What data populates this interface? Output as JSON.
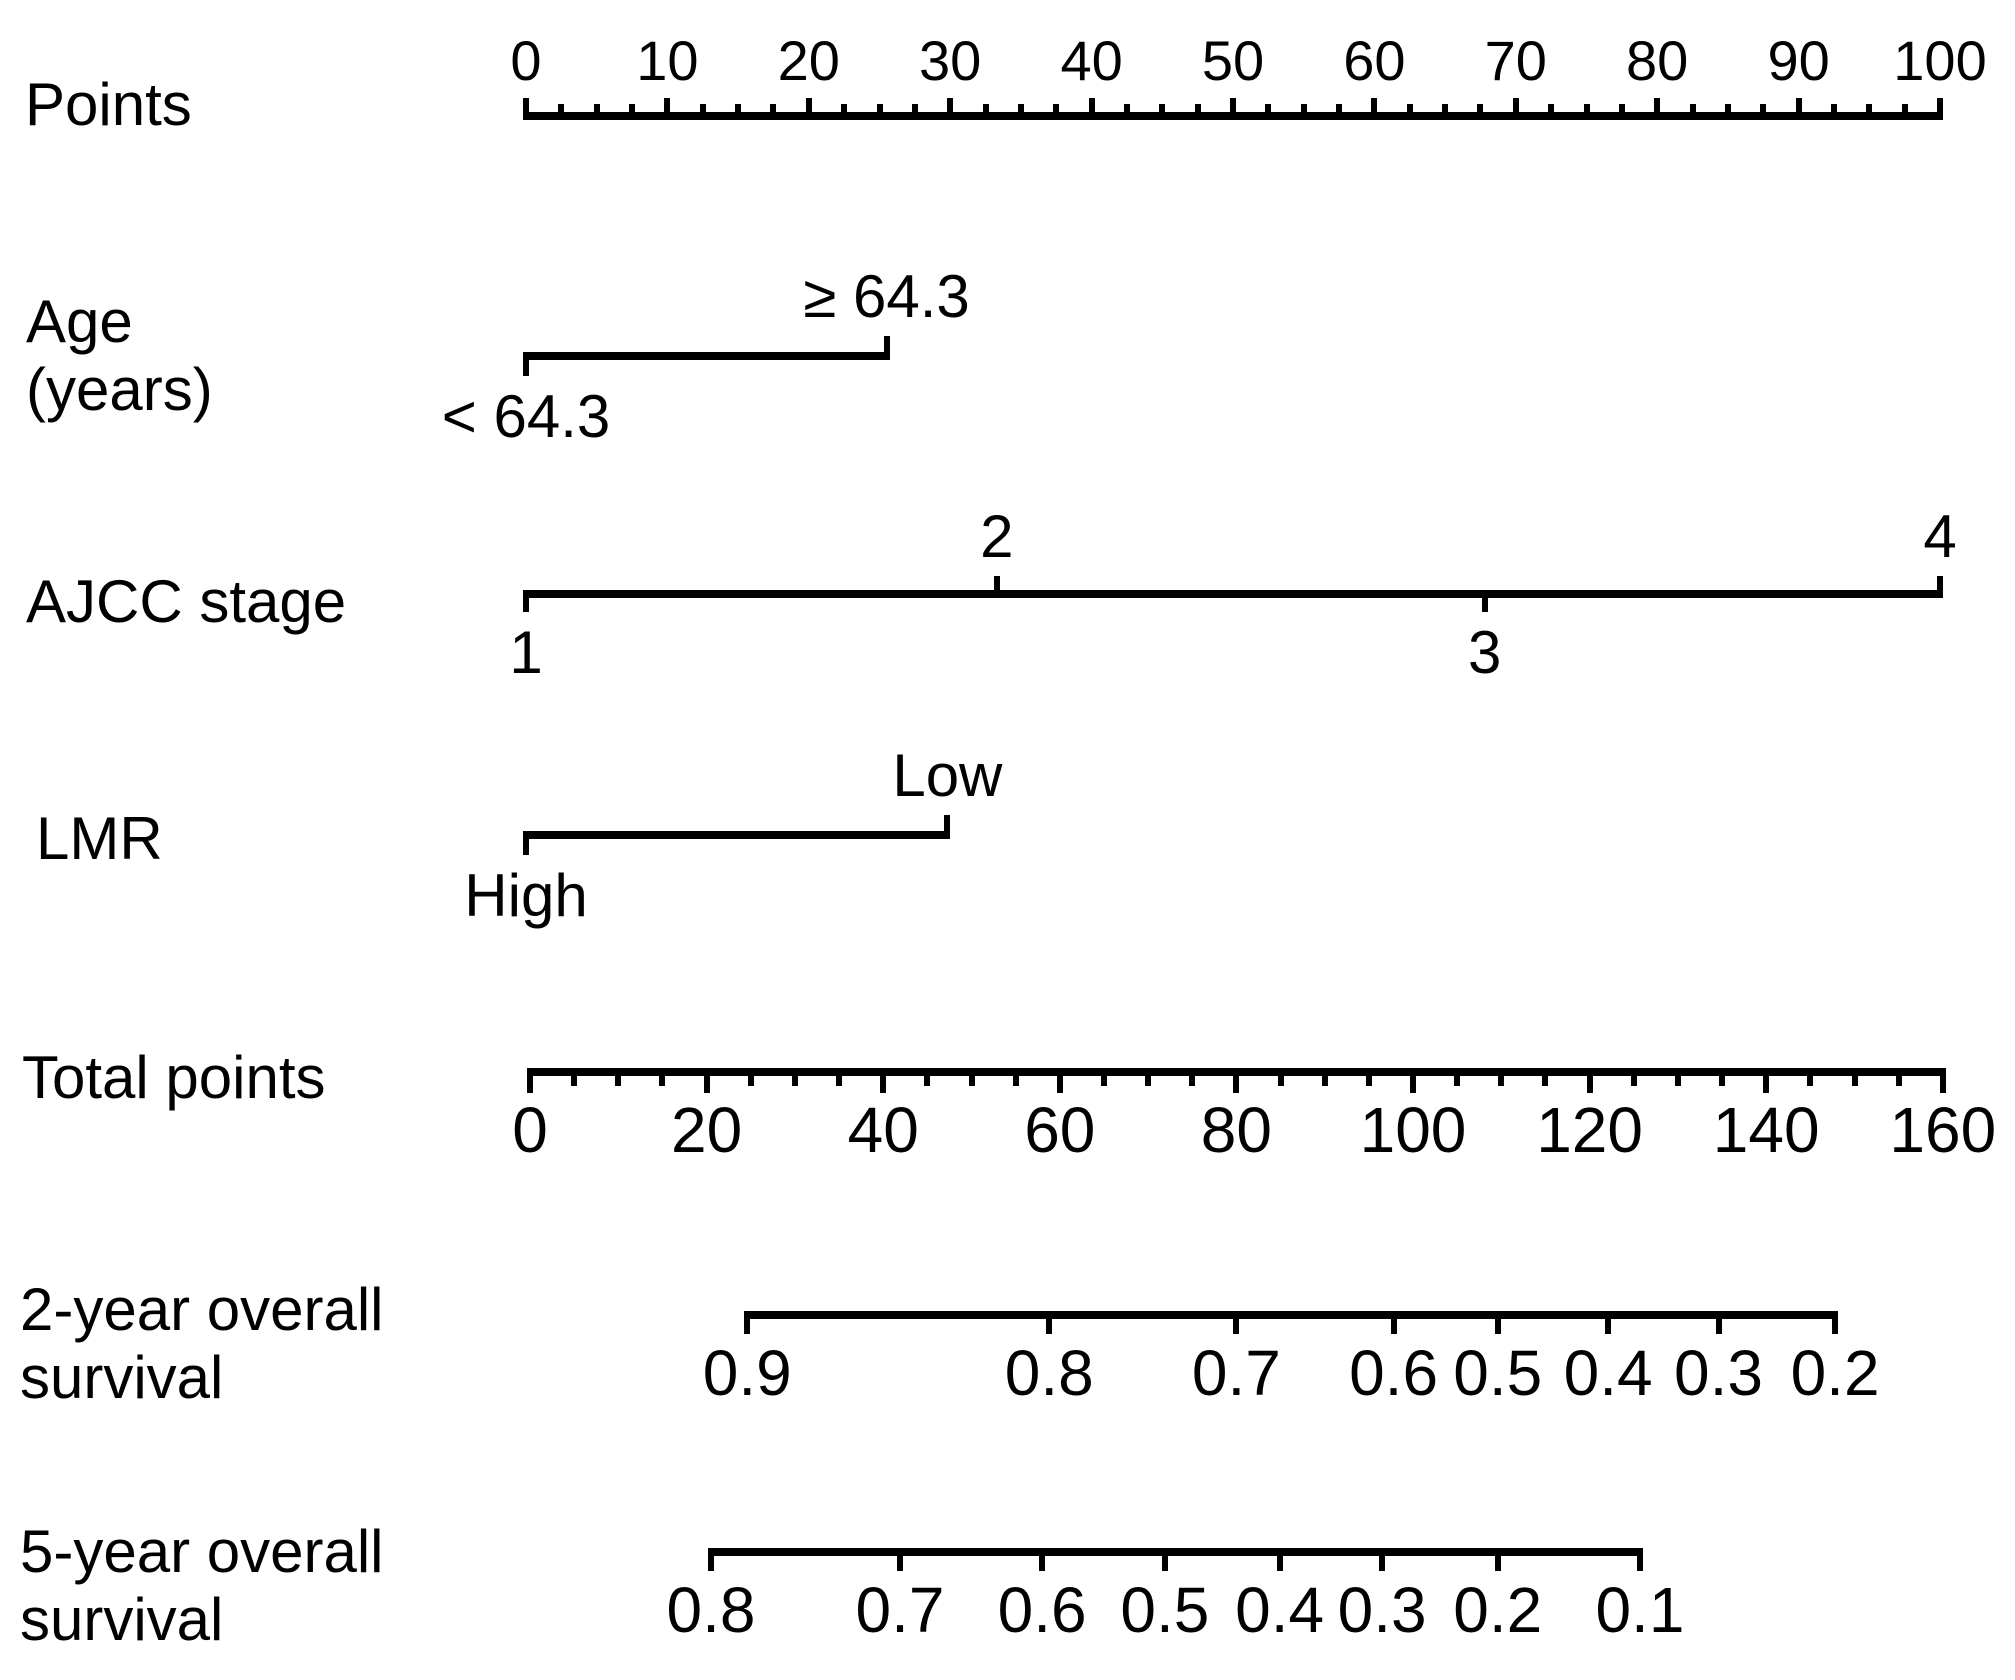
{
  "figure": {
    "background": "#ffffff",
    "ink_color": "#000000"
  },
  "chart_data": {
    "type": "nomogram",
    "description": "Nomogram predicting 2-year and 5-year overall survival from Age, AJCC stage and LMR",
    "rows": [
      {
        "id": "points",
        "kind": "ruler",
        "scale": "points",
        "label_lines": [
          "Points"
        ],
        "range": [
          0,
          100
        ],
        "tick_side": "above",
        "minor_step": 2.5,
        "major_ticks": [
          {
            "text": "0",
            "value": 0
          },
          {
            "text": "10",
            "value": 10
          },
          {
            "text": "20",
            "value": 20
          },
          {
            "text": "30",
            "value": 30
          },
          {
            "text": "40",
            "value": 40
          },
          {
            "text": "50",
            "value": 50
          },
          {
            "text": "60",
            "value": 60
          },
          {
            "text": "70",
            "value": 70
          },
          {
            "text": "80",
            "value": 80
          },
          {
            "text": "90",
            "value": 90
          },
          {
            "text": "100",
            "value": 100
          }
        ]
      },
      {
        "id": "age",
        "kind": "categorical",
        "scale": "points",
        "label_lines": [
          "Age",
          "(years)"
        ],
        "range": [
          0,
          25.5
        ],
        "categories": [
          {
            "text": "< 64.3",
            "value": 0,
            "side": "below"
          },
          {
            "text": "≥ 64.3",
            "value": 25.5,
            "side": "above"
          }
        ]
      },
      {
        "id": "ajcc",
        "kind": "categorical",
        "scale": "points",
        "label_lines": [
          "AJCC stage"
        ],
        "range": [
          0,
          100
        ],
        "categories": [
          {
            "text": "1",
            "value": 0,
            "side": "below"
          },
          {
            "text": "2",
            "value": 33.3,
            "side": "above"
          },
          {
            "text": "3",
            "value": 67.8,
            "side": "below"
          },
          {
            "text": "4",
            "value": 100,
            "side": "above"
          }
        ]
      },
      {
        "id": "lmr",
        "kind": "categorical",
        "scale": "points",
        "label_lines": [
          "LMR"
        ],
        "range": [
          0,
          29.8
        ],
        "categories": [
          {
            "text": "High",
            "value": 0,
            "side": "below"
          },
          {
            "text": "Low",
            "value": 29.8,
            "side": "above"
          }
        ]
      },
      {
        "id": "total",
        "kind": "ruler",
        "scale": "total",
        "label_lines": [
          "Total points"
        ],
        "range": [
          0,
          160
        ],
        "tick_side": "below",
        "minor_step": 5,
        "major_ticks": [
          {
            "text": "0",
            "value": 0
          },
          {
            "text": "20",
            "value": 20
          },
          {
            "text": "40",
            "value": 40
          },
          {
            "text": "60",
            "value": 60
          },
          {
            "text": "80",
            "value": 80
          },
          {
            "text": "100",
            "value": 100
          },
          {
            "text": "120",
            "value": 120
          },
          {
            "text": "140",
            "value": 140
          },
          {
            "text": "160",
            "value": 160
          }
        ]
      },
      {
        "id": "os2",
        "kind": "survival",
        "scale": "total",
        "label_lines": [
          "2-year overall",
          "survival"
        ],
        "range": [
          24.6,
          147.8
        ],
        "ticks": [
          {
            "text": "0.9",
            "value": 24.6
          },
          {
            "text": "0.8",
            "value": 58.8
          },
          {
            "text": "0.7",
            "value": 80.0
          },
          {
            "text": "0.6",
            "value": 97.8
          },
          {
            "text": "0.5",
            "value": 109.6
          },
          {
            "text": "0.4",
            "value": 122.1
          },
          {
            "text": "0.3",
            "value": 134.6
          },
          {
            "text": "0.2",
            "value": 147.8
          }
        ]
      },
      {
        "id": "os5",
        "kind": "survival",
        "scale": "total",
        "label_lines": [
          "5-year overall",
          "survival"
        ],
        "range": [
          20.5,
          125.7
        ],
        "ticks": [
          {
            "text": "0.8",
            "value": 20.5
          },
          {
            "text": "0.7",
            "value": 41.9
          },
          {
            "text": "0.6",
            "value": 58.0
          },
          {
            "text": "0.5",
            "value": 71.9
          },
          {
            "text": "0.4",
            "value": 84.9
          },
          {
            "text": "0.3",
            "value": 96.5
          },
          {
            "text": "0.2",
            "value": 109.6
          },
          {
            "text": "0.1",
            "value": 125.7
          }
        ]
      }
    ]
  }
}
